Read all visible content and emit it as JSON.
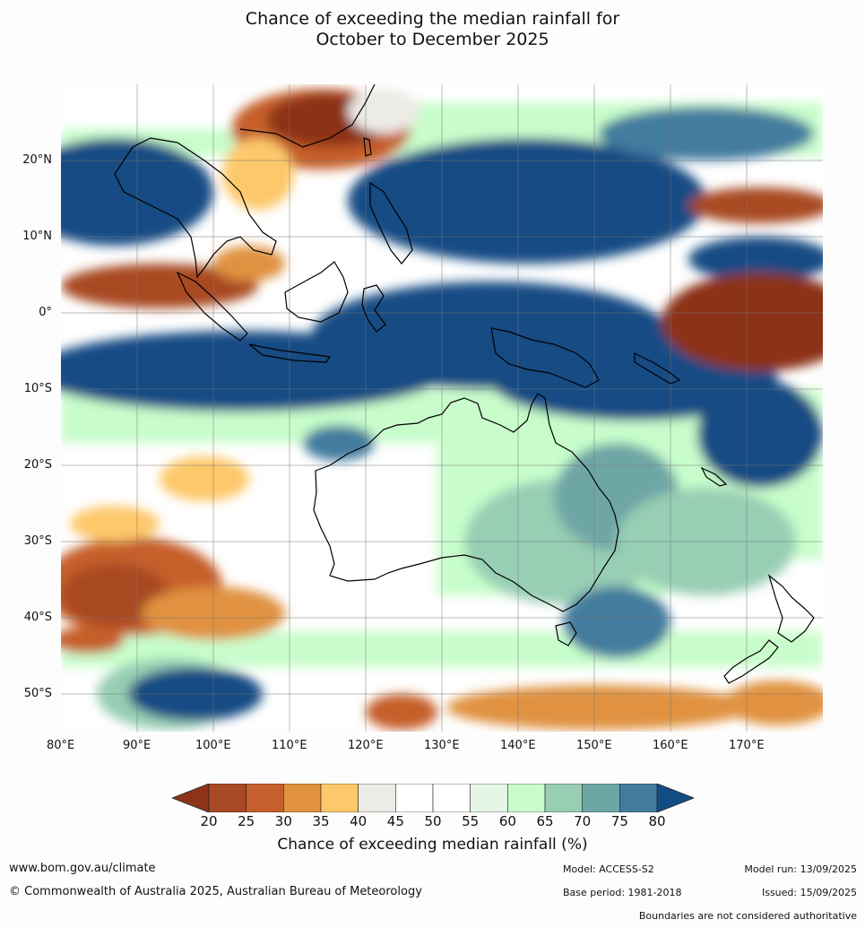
{
  "title_line1": "Chance of exceeding the median rainfall for",
  "title_line2": "October to December 2025",
  "lat_labels": [
    "20°N",
    "10°N",
    "0°",
    "10°S",
    "20°S",
    "30°S",
    "40°S",
    "50°S"
  ],
  "lon_labels": [
    "80°E",
    "90°E",
    "100°E",
    "110°E",
    "120°E",
    "130°E",
    "140°E",
    "150°E",
    "160°E",
    "170°E"
  ],
  "legend": {
    "ticks": [
      "20",
      "25",
      "30",
      "35",
      "40",
      "45",
      "50",
      "55",
      "60",
      "65",
      "70",
      "75",
      "80"
    ],
    "colors": [
      "#8c3318",
      "#a84824",
      "#c65f2c",
      "#e0923f",
      "#fdc86a",
      "#ecebe6",
      "#ffffff",
      "#ffffff",
      "#e6f6e6",
      "#c8fdcb",
      "#98ceb4",
      "#6ea6a6",
      "#437b9f",
      "#134b84"
    ],
    "label": "Chance of exceeding median rainfall (%)"
  },
  "footer": {
    "url": "www.bom.gov.au/climate",
    "copyright": "© Commonwealth of Australia 2025, Australian Bureau of Meteorology",
    "model": "Model: ACCESS-S2",
    "base_period": "Base period: 1981-2018",
    "model_run": "Model run: 13/09/2025",
    "issued": "Issued: 15/09/2025",
    "disclaimer": "Boundaries are not considered authoritative"
  }
}
